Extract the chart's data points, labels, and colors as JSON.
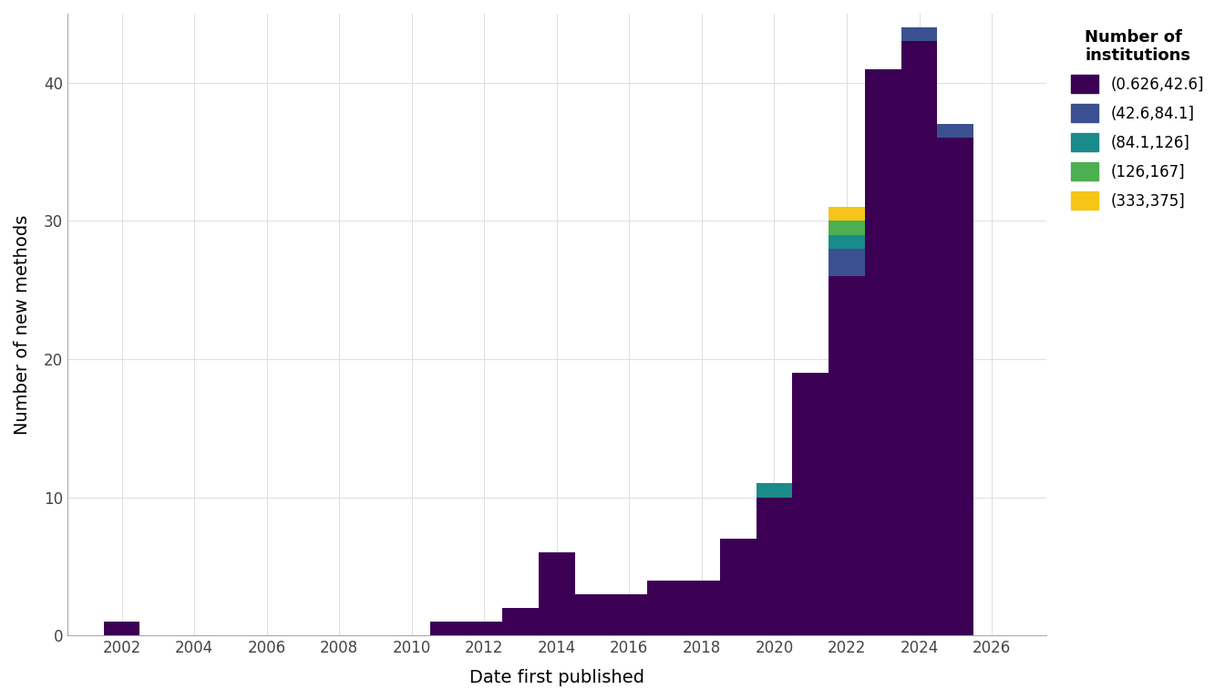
{
  "xlabel": "Date first published",
  "ylabel": "Number of new methods",
  "background_color": "#ffffff",
  "grid_color": "#e0e0e0",
  "years": [
    2002,
    2003,
    2004,
    2005,
    2006,
    2007,
    2008,
    2009,
    2010,
    2011,
    2012,
    2013,
    2014,
    2015,
    2016,
    2017,
    2018,
    2019,
    2020,
    2021,
    2022,
    2023,
    2024,
    2025
  ],
  "cat1_values": [
    1,
    0,
    0,
    0,
    0,
    0,
    0,
    0,
    0,
    1,
    1,
    2,
    6,
    3,
    3,
    4,
    4,
    7,
    10,
    19,
    26,
    41,
    43,
    36
  ],
  "cat2_values": [
    0,
    0,
    0,
    0,
    0,
    0,
    0,
    0,
    0,
    0,
    0,
    0,
    0,
    0,
    0,
    0,
    0,
    0,
    0,
    0,
    2,
    0,
    1,
    1
  ],
  "cat3_values": [
    0,
    0,
    0,
    0,
    0,
    0,
    0,
    0,
    0,
    0,
    0,
    0,
    0,
    0,
    0,
    0,
    0,
    0,
    1,
    0,
    1,
    0,
    0,
    0
  ],
  "cat4_values": [
    0,
    0,
    0,
    0,
    0,
    0,
    0,
    0,
    0,
    0,
    0,
    0,
    0,
    0,
    0,
    0,
    0,
    0,
    0,
    0,
    1,
    0,
    0,
    0
  ],
  "cat5_values": [
    0,
    0,
    0,
    0,
    0,
    0,
    0,
    0,
    0,
    0,
    0,
    0,
    0,
    0,
    0,
    0,
    0,
    0,
    0,
    0,
    1,
    0,
    0,
    0
  ],
  "colors": {
    "cat1": "#3b0054",
    "cat2": "#3b5090",
    "cat3": "#1a8a8a",
    "cat4": "#4caf50",
    "cat5": "#f5c518"
  },
  "legend_labels": [
    "(0.626,42.6]",
    "(42.6,84.1]",
    "(84.1,126]",
    "(126,167]",
    "(333,375]"
  ],
  "legend_title": "Number of\ninstitutions",
  "ylim": [
    0,
    45
  ],
  "xlim": [
    2000.5,
    2027.5
  ],
  "xticks": [
    2002,
    2004,
    2006,
    2008,
    2010,
    2012,
    2014,
    2016,
    2018,
    2020,
    2022,
    2024,
    2026
  ],
  "yticks": [
    0,
    10,
    20,
    30,
    40
  ],
  "bar_width": 1.0,
  "axis_label_fontsize": 14,
  "tick_fontsize": 12,
  "legend_fontsize": 12,
  "legend_title_fontsize": 13
}
